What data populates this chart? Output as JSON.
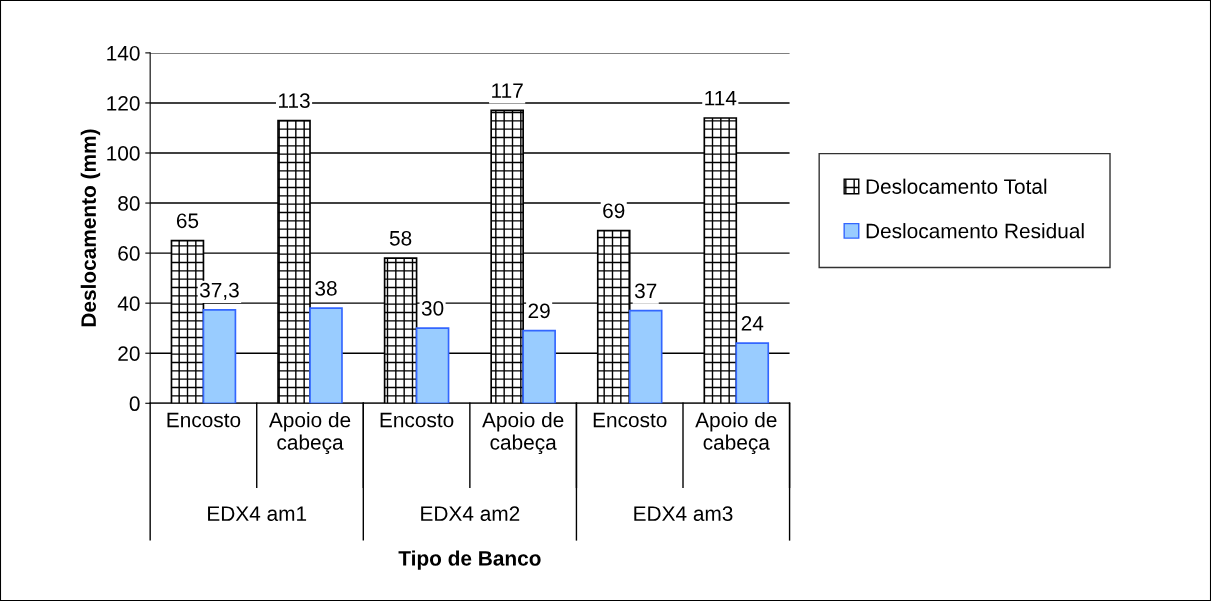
{
  "chart_data": {
    "type": "bar",
    "xlabel": "Tipo de Banco",
    "ylabel": "Deslocamento (mm)",
    "categories": [
      "Encosto",
      "Apoio de cabeça",
      "Encosto",
      "Apoio de cabeça",
      "Encosto",
      "Apoio de cabeça"
    ],
    "annotations": [
      "EDX4 am1",
      "EDX4 am2",
      "EDX4 am3"
    ],
    "series": [
      {
        "name": "Deslocamento Total",
        "color": "#000000",
        "values": [
          65,
          113,
          58,
          117,
          69,
          114
        ],
        "value_labels": [
          "65",
          "113",
          "58",
          "117",
          "69",
          "114"
        ]
      },
      {
        "name": "Deslocamento Residual",
        "color": "#99ccff",
        "values": [
          37.3,
          38,
          30,
          29,
          37,
          24
        ],
        "value_labels": [
          "37,3",
          "38",
          "30",
          "29",
          "37",
          "24"
        ]
      }
    ],
    "ylim": [
      0,
      140
    ],
    "yticks": [
      0,
      20,
      40,
      60,
      80,
      100,
      120,
      140
    ],
    "grid": "y",
    "legend": "right"
  }
}
